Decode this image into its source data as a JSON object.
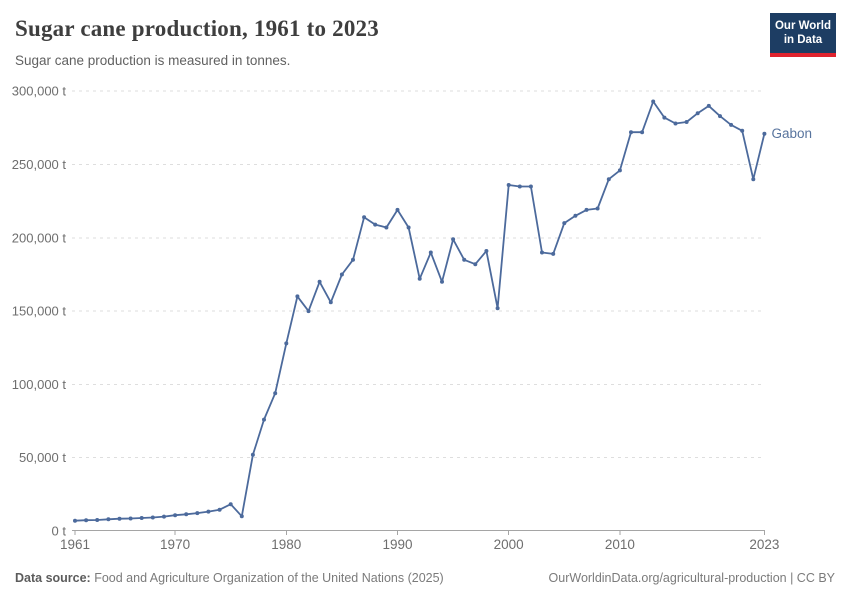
{
  "header": {
    "logo": {
      "line1": "Our World",
      "line2": "in Data",
      "bg_color": "#1d3d63",
      "bar_color": "#e0232e"
    }
  },
  "chart_data": {
    "type": "line",
    "title": "Sugar cane production, 1961 to 2023",
    "subtitle": "Sugar cane production is measured in tonnes.",
    "unit": "t",
    "grid": true,
    "legend": "end-label",
    "line_color": "#4c6a9c",
    "series_label_color": "#58749e",
    "grid_color": "#dedede",
    "axis_color": "#a5a5a5",
    "tick_text_color": "#6e6e6e",
    "ylim": [
      0,
      300000
    ],
    "yticks": [
      0,
      50000,
      100000,
      150000,
      200000,
      250000,
      300000
    ],
    "ytick_labels": [
      "0 t",
      "50,000 t",
      "100,000 t",
      "150,000 t",
      "200,000 t",
      "250,000 t",
      "300,000 t"
    ],
    "xticks": [
      1961,
      1970,
      1980,
      1990,
      2000,
      2010,
      2023
    ],
    "xtick_labels": [
      "1961",
      "1970",
      "1980",
      "1990",
      "2000",
      "2010",
      "2023"
    ],
    "series": [
      {
        "name": "Gabon",
        "x": [
          1961,
          1962,
          1963,
          1964,
          1965,
          1966,
          1967,
          1968,
          1969,
          1970,
          1971,
          1972,
          1973,
          1974,
          1975,
          1976,
          1977,
          1978,
          1979,
          1980,
          1981,
          1982,
          1983,
          1984,
          1985,
          1986,
          1987,
          1988,
          1989,
          1990,
          1991,
          1992,
          1993,
          1994,
          1995,
          1996,
          1997,
          1998,
          1999,
          2000,
          2001,
          2002,
          2003,
          2004,
          2005,
          2006,
          2007,
          2008,
          2009,
          2010,
          2011,
          2012,
          2013,
          2014,
          2015,
          2016,
          2017,
          2018,
          2019,
          2020,
          2021,
          2022,
          2023
        ],
        "values": [
          7000,
          7400,
          7500,
          8000,
          8400,
          8500,
          8900,
          9200,
          9800,
          10800,
          11400,
          12200,
          13200,
          14500,
          18300,
          10000,
          52000,
          76000,
          94000,
          128000,
          160000,
          150000,
          170000,
          156000,
          175000,
          185000,
          214000,
          209000,
          207000,
          219000,
          207000,
          172000,
          190000,
          170000,
          199000,
          185000,
          182000,
          191000,
          152000,
          236000,
          235000,
          235000,
          190000,
          189000,
          210000,
          215000,
          219000,
          220000,
          240000,
          246000,
          272000,
          272000,
          293000,
          282000,
          278000,
          279000,
          285000,
          290000,
          283000,
          277000,
          273000,
          240000,
          271000
        ]
      }
    ]
  },
  "footer": {
    "source_label": "Data source:",
    "source_text": " Food and Agriculture Organization of the United Nations (2025)",
    "right_text": "OurWorldinData.org/agricultural-production | CC BY"
  }
}
